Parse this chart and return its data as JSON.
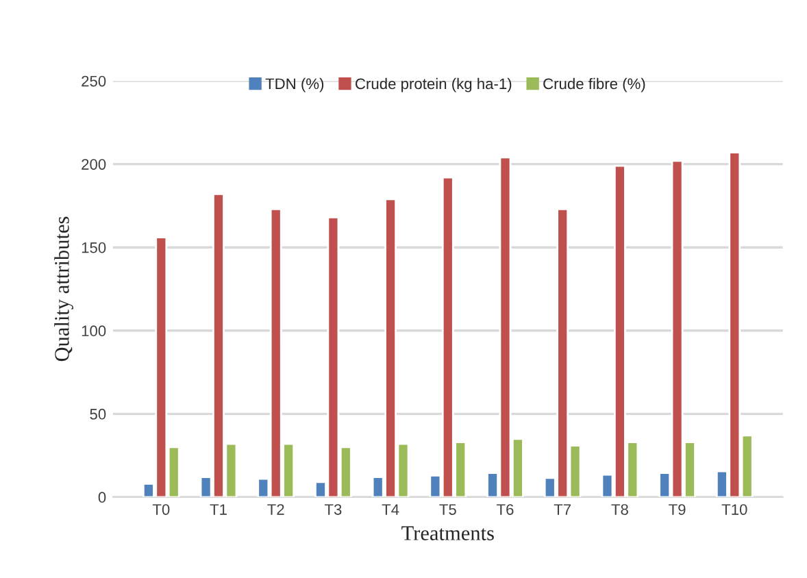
{
  "chart_data": {
    "type": "bar",
    "xlabel": "Treatments",
    "ylabel": "Quality attributes",
    "categories": [
      "T0",
      "T1",
      "T2",
      "T3",
      "T4",
      "T5",
      "T6",
      "T7",
      "T8",
      "T9",
      "T10"
    ],
    "series": [
      {
        "name": "TDN (%)",
        "color": "#4f81bd",
        "values": [
          8,
          12,
          11,
          9,
          12,
          13,
          14.5,
          11.5,
          13.5,
          14.5,
          15.5
        ]
      },
      {
        "name": "Crude protein (kg ha-1)",
        "color": "#c0504d",
        "values": [
          156,
          182,
          173,
          168,
          179,
          192,
          204,
          173,
          199,
          202,
          207
        ]
      },
      {
        "name": "Crude fibre (%)",
        "color": "#9bbb59",
        "values": [
          30,
          32,
          32,
          30,
          32,
          33,
          35,
          31,
          33,
          33,
          37
        ]
      }
    ],
    "ylim": [
      0,
      250
    ],
    "yticks": [
      0,
      50,
      100,
      150,
      200,
      250
    ],
    "grid": "y",
    "legend": "top"
  }
}
